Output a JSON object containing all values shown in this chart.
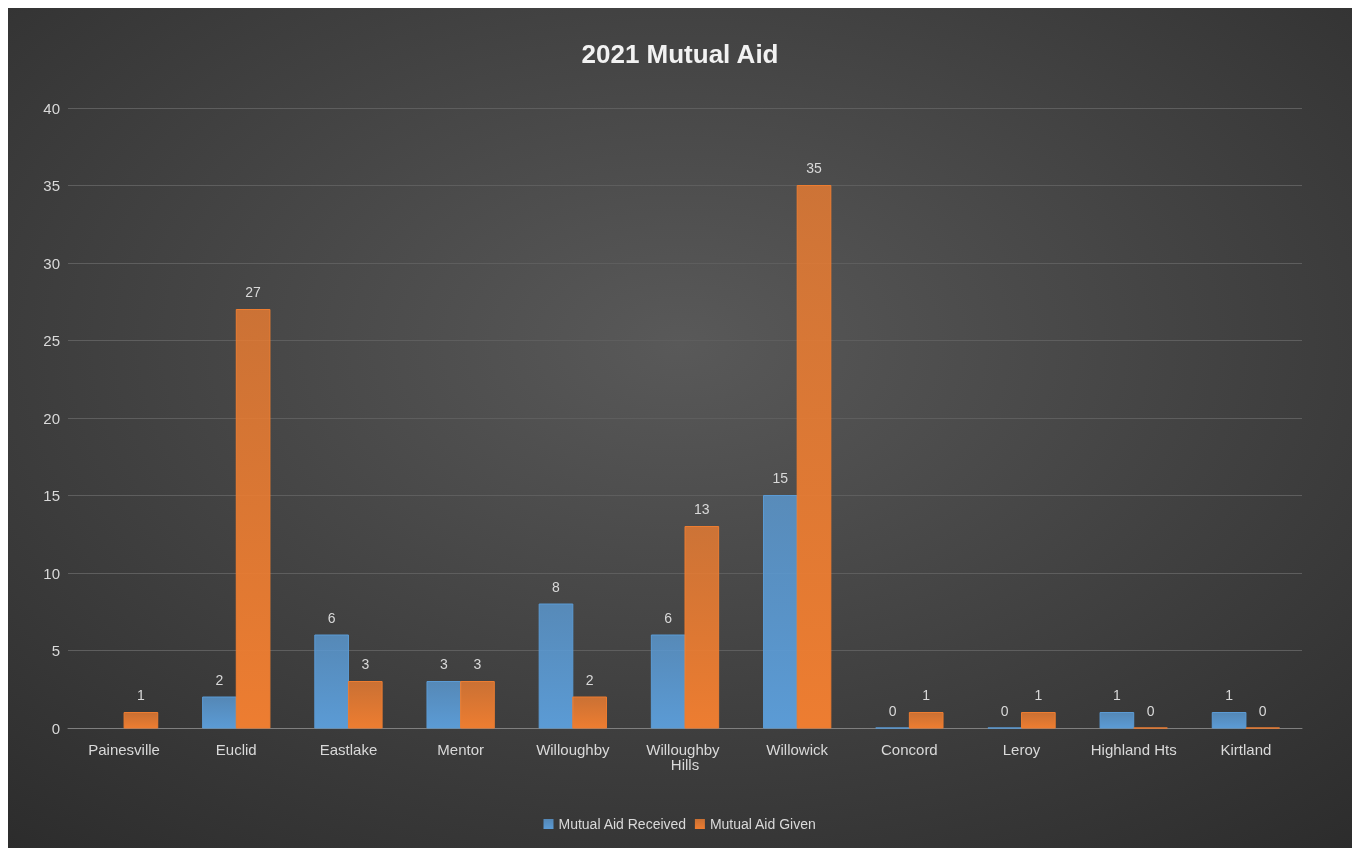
{
  "chart_data": {
    "type": "bar",
    "title": "2021 Mutual Aid",
    "categories": [
      "Painesville",
      "Euclid",
      "Eastlake",
      "Mentor",
      "Willoughby",
      "Willoughby Hills",
      "Willowick",
      "Concord",
      "Leroy",
      "Highland Hts",
      "Kirtland"
    ],
    "series": [
      {
        "name": "Mutual Aid Received",
        "color": "#5b9bd5",
        "values": [
          null,
          2,
          6,
          3,
          8,
          6,
          15,
          0,
          0,
          1,
          1
        ]
      },
      {
        "name": "Mutual Aid Given",
        "color": "#ed7d31",
        "values": [
          1,
          27,
          3,
          3,
          2,
          13,
          35,
          1,
          1,
          0,
          0
        ]
      }
    ],
    "ylim": [
      0,
      40
    ],
    "yticks": [
      0,
      5,
      10,
      15,
      20,
      25,
      30,
      35,
      40
    ],
    "grid": "y",
    "legend": "bottom",
    "data_labels": true
  }
}
